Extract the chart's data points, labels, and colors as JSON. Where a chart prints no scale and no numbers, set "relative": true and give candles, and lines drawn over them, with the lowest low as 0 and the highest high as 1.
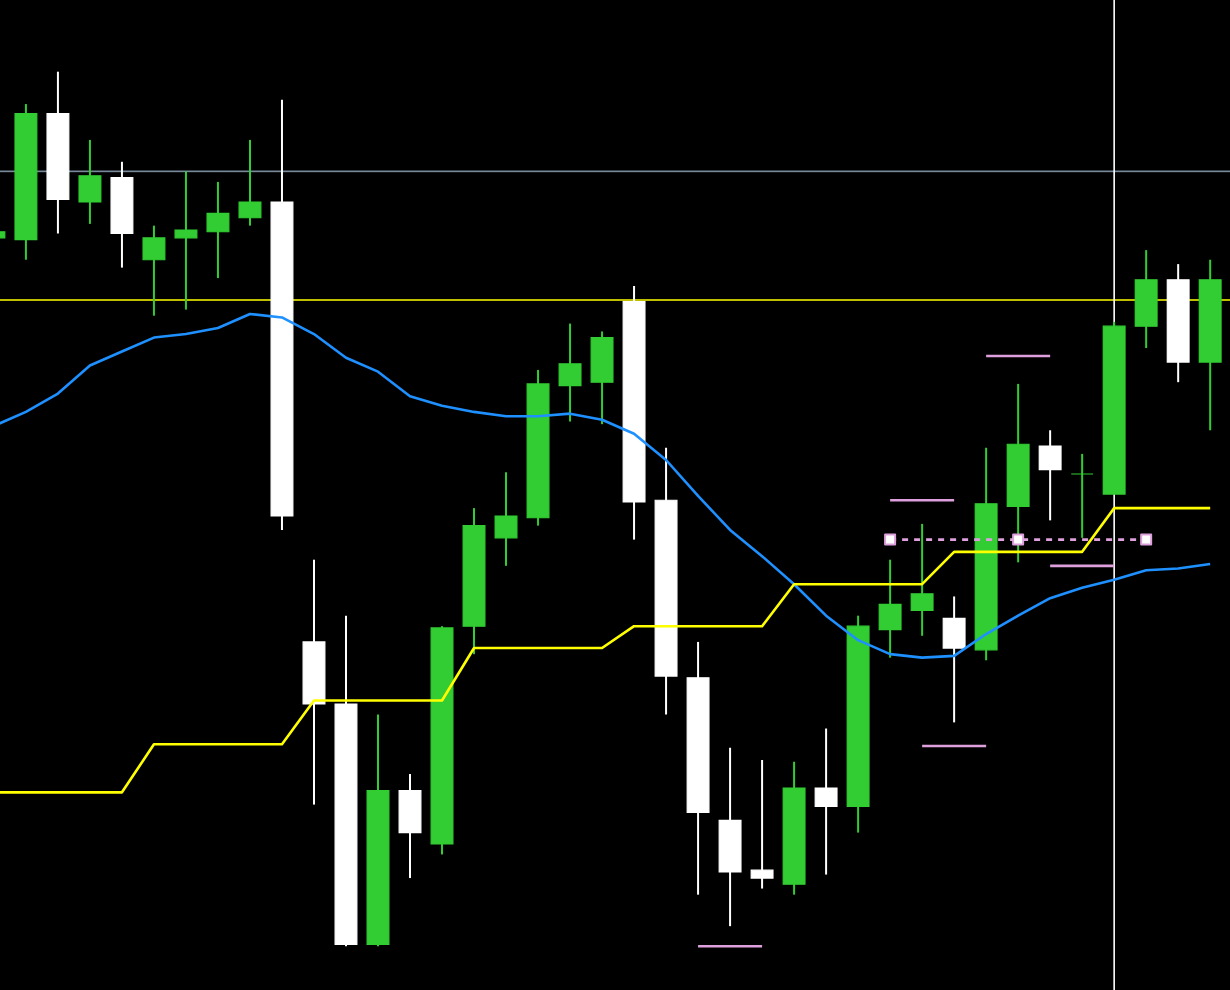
{
  "chart_data": {
    "type": "candlestick",
    "relative": true,
    "categories": [
      null,
      null,
      null,
      null,
      null,
      null,
      null,
      null,
      null,
      null,
      null,
      null,
      null,
      null,
      null,
      null,
      null,
      null,
      null,
      null,
      null,
      null,
      null,
      null,
      null,
      null,
      null,
      null,
      null,
      null,
      null,
      null,
      null,
      null,
      null,
      null,
      null,
      null,
      null
    ],
    "ohlc": [
      [
        0.81,
        0.819,
        0.808,
        0.817
      ],
      [
        0.808,
        0.963,
        0.785,
        0.952
      ],
      [
        0.952,
        1.0,
        0.815,
        0.854
      ],
      [
        0.851,
        0.922,
        0.826,
        0.881
      ],
      [
        0.879,
        0.897,
        0.776,
        0.815
      ],
      [
        0.785,
        0.824,
        0.721,
        0.81
      ],
      [
        0.81,
        0.886,
        0.728,
        0.819
      ],
      [
        0.817,
        0.874,
        0.764,
        0.838
      ],
      [
        0.833,
        0.922,
        0.824,
        0.851
      ],
      [
        0.851,
        0.968,
        0.476,
        0.492
      ],
      [
        0.348,
        0.442,
        0.162,
        0.277
      ],
      [
        0.277,
        0.378,
        0,
        0.002
      ],
      [
        0.002,
        0.265,
        0,
        0.178
      ],
      [
        0.178,
        0.197,
        0.078,
        0.13
      ],
      [
        0.117,
        0.366,
        0.105,
        0.364
      ],
      [
        0.366,
        0.501,
        0.334,
        0.481
      ],
      [
        0.467,
        0.542,
        0.435,
        0.492
      ],
      [
        0.49,
        0.659,
        0.481,
        0.643
      ],
      [
        0.641,
        0.712,
        0.6,
        0.666
      ],
      [
        0.645,
        0.703,
        0.597,
        0.696
      ],
      [
        0.737,
        0.755,
        0.465,
        0.508
      ],
      [
        0.51,
        0.57,
        0.265,
        0.309
      ],
      [
        0.307,
        0.348,
        0.059,
        0.153
      ],
      [
        0.144,
        0.227,
        0.023,
        0.085
      ],
      [
        0.087,
        0.213,
        0.066,
        0.078
      ],
      [
        0.071,
        0.211,
        0.059,
        0.181
      ],
      [
        0.181,
        0.249,
        0.082,
        0.16
      ],
      [
        0.16,
        0.378,
        0.13,
        0.366
      ],
      [
        0.362,
        0.442,
        0.33,
        0.391
      ],
      [
        0.384,
        0.483,
        0.355,
        0.403
      ],
      [
        0.375,
        0.4,
        0.256,
        0.341
      ],
      [
        0.339,
        0.57,
        0.327,
        0.506
      ],
      [
        0.503,
        0.643,
        0.439,
        0.574
      ],
      [
        0.572,
        0.59,
        0.487,
        0.545
      ],
      [
        0.54,
        0.563,
        0.467,
        0.54
      ],
      [
        0.517,
        0.714,
        0.517,
        0.709
      ],
      [
        0.709,
        0.796,
        0.684,
        0.762
      ],
      [
        0.762,
        0.78,
        0.645,
        0.668
      ],
      [
        0.668,
        0.785,
        0.59,
        0.762
      ]
    ],
    "colors": [
      "#32cd32",
      "#32cd32",
      "#ffffff",
      "#32cd32",
      "#ffffff",
      "#32cd32",
      "#32cd32",
      "#32cd32",
      "#32cd32",
      "#ffffff",
      "#ffffff",
      "#ffffff",
      "#32cd32",
      "#ffffff",
      "#32cd32",
      "#32cd32",
      "#32cd32",
      "#32cd32",
      "#32cd32",
      "#32cd32",
      "#ffffff",
      "#ffffff",
      "#ffffff",
      "#ffffff",
      "#ffffff",
      "#32cd32",
      "#ffffff",
      "#32cd32",
      "#32cd32",
      "#32cd32",
      "#ffffff",
      "#32cd32",
      "#32cd32",
      "#ffffff",
      "#32cd32",
      "#32cd32",
      "#32cd32",
      "#ffffff",
      "#32cd32"
    ],
    "series": [
      {
        "type": "line",
        "color": "#1e90ff",
        "values": [
          0.595,
          0.611,
          0.632,
          0.664,
          0.68,
          0.696,
          0.7,
          0.707,
          0.723,
          0.719,
          0.7,
          0.673,
          0.657,
          0.629,
          0.618,
          0.611,
          0.606,
          0.606,
          0.609,
          0.602,
          0.586,
          0.556,
          0.515,
          0.476,
          0.446,
          0.414,
          0.378,
          0.35,
          0.334,
          0.33,
          0.332,
          0.357,
          0.378,
          0.398,
          0.41,
          0.419,
          0.43,
          0.432,
          0.437
        ]
      },
      {
        "type": "line",
        "color": "#ffff00",
        "values": [
          0.176,
          0.176,
          0.176,
          0.176,
          0.176,
          0.231,
          0.231,
          0.231,
          0.231,
          0.231,
          0.281,
          0.281,
          0.281,
          0.281,
          0.281,
          0.341,
          0.341,
          0.341,
          0.341,
          0.341,
          0.366,
          0.366,
          0.366,
          0.366,
          0.366,
          0.414,
          0.414,
          0.414,
          0.414,
          0.414,
          0.451,
          0.451,
          0.451,
          0.451,
          0.451,
          0.501,
          0.501,
          0.501,
          0.501
        ]
      },
      {
        "type": "line",
        "color": "#dda0dd",
        "values": [
          null,
          null,
          null,
          null,
          null,
          null,
          null,
          null,
          null,
          null,
          null,
          null,
          null,
          null,
          null,
          null,
          null,
          null,
          null,
          null,
          null,
          null,
          0,
          0,
          0,
          null,
          null,
          null,
          null,
          null,
          null,
          null,
          null,
          null,
          null,
          null,
          null,
          null,
          null
        ]
      },
      {
        "type": "line",
        "color": "#dda0dd",
        "values": [
          null,
          null,
          null,
          null,
          null,
          null,
          null,
          null,
          null,
          null,
          null,
          null,
          null,
          null,
          null,
          null,
          null,
          null,
          null,
          null,
          null,
          null,
          null,
          null,
          null,
          null,
          null,
          null,
          0.51,
          0.51,
          0.51,
          null,
          null,
          null,
          null,
          null,
          null,
          null,
          null
        ]
      },
      {
        "type": "line",
        "color": "#dda0dd",
        "values": [
          null,
          null,
          null,
          null,
          null,
          null,
          null,
          null,
          null,
          null,
          null,
          null,
          null,
          null,
          null,
          null,
          null,
          null,
          null,
          null,
          null,
          null,
          null,
          null,
          null,
          null,
          null,
          null,
          null,
          0.229,
          0.229,
          0.229,
          null,
          null,
          null,
          null,
          null,
          null,
          null
        ]
      },
      {
        "type": "line",
        "color": "#dda0dd",
        "values": [
          null,
          null,
          null,
          null,
          null,
          null,
          null,
          null,
          null,
          null,
          null,
          null,
          null,
          null,
          null,
          null,
          null,
          null,
          null,
          null,
          null,
          null,
          null,
          null,
          null,
          null,
          null,
          null,
          null,
          null,
          null,
          0.675,
          0.675,
          0.675,
          null,
          null,
          null,
          null,
          null
        ]
      },
      {
        "type": "line",
        "color": "#dda0dd",
        "values": [
          null,
          null,
          null,
          null,
          null,
          null,
          null,
          null,
          null,
          null,
          null,
          null,
          null,
          null,
          null,
          null,
          null,
          null,
          null,
          null,
          null,
          null,
          null,
          null,
          null,
          null,
          null,
          null,
          null,
          null,
          null,
          null,
          null,
          0.435,
          0.435,
          0.435,
          null,
          null,
          null
        ]
      },
      {
        "type": "line",
        "color": "#dda0dd",
        "line_style": "dashed",
        "values": [
          null,
          null,
          null,
          null,
          null,
          null,
          null,
          null,
          null,
          null,
          null,
          null,
          null,
          null,
          null,
          null,
          null,
          null,
          null,
          null,
          null,
          null,
          null,
          null,
          null,
          null,
          null,
          null,
          0.465,
          0.465,
          0.465,
          0.465,
          0.465,
          0.465,
          0.465,
          0.465,
          0.465,
          null,
          null
        ]
      },
      {
        "type": "scatter",
        "color": "#dda0dd",
        "marker": "square",
        "values": [
          null,
          null,
          null,
          null,
          null,
          null,
          null,
          null,
          null,
          null,
          null,
          null,
          null,
          null,
          null,
          null,
          null,
          null,
          null,
          null,
          null,
          null,
          null,
          null,
          null,
          null,
          null,
          null,
          0.465,
          null,
          null,
          null,
          0.465,
          null,
          null,
          null,
          0.465,
          null,
          null
        ]
      }
    ],
    "ref_lines": [
      {
        "axis": "y",
        "value": 0.886,
        "color": "#778899"
      },
      {
        "axis": "y",
        "value": 0.739,
        "color": "#ffff00"
      }
    ]
  }
}
